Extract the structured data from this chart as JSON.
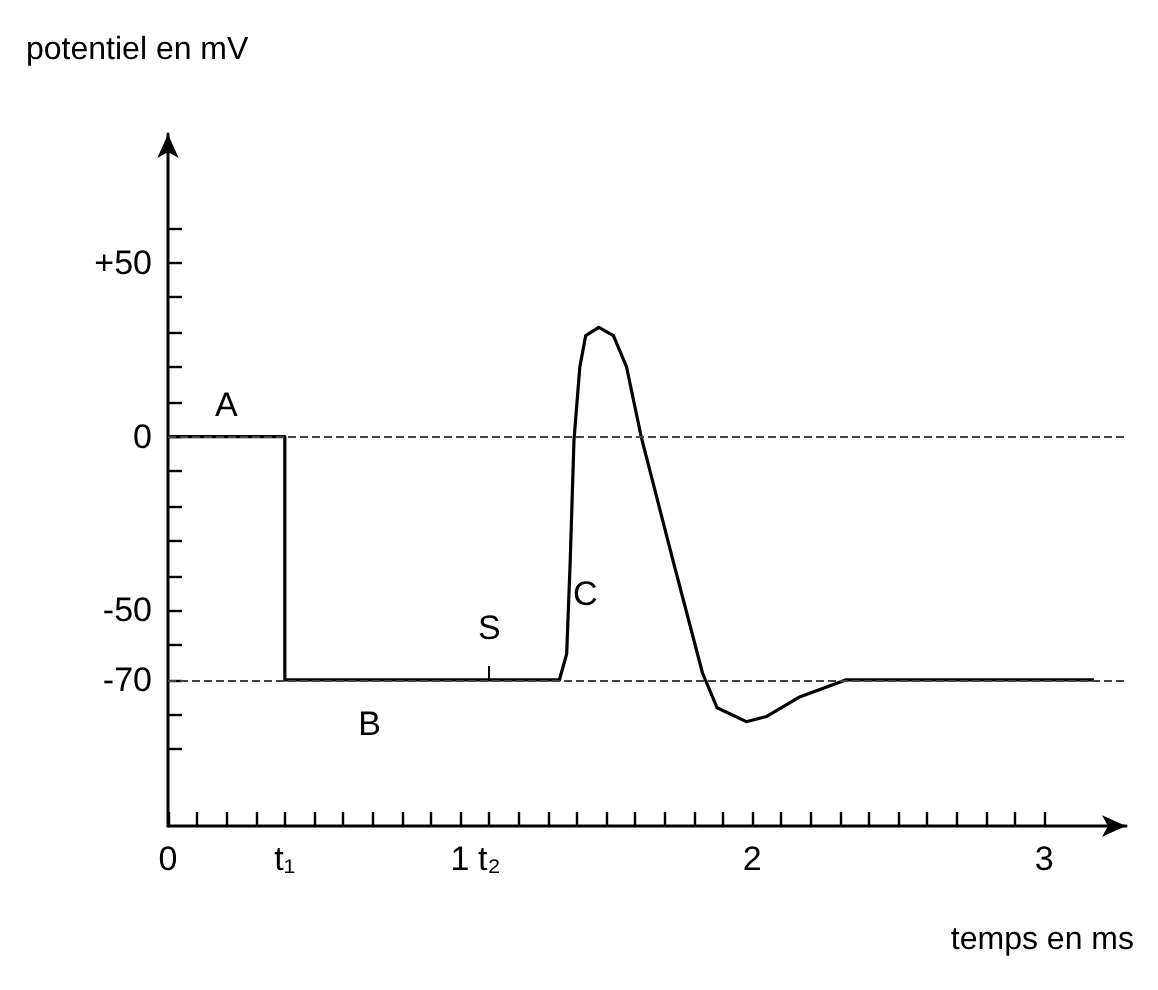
{
  "chart_data": {
    "type": "line",
    "xlabel": "temps en ms",
    "ylabel": "potentiel en mV",
    "x": [
      0,
      0.4,
      0.4,
      1.34,
      1.365,
      1.377,
      1.39,
      1.41,
      1.43,
      1.475,
      1.525,
      1.57,
      1.62,
      1.73,
      1.83,
      1.88,
      1.98,
      2.05,
      2.16,
      2.32,
      3.17
    ],
    "series": [
      {
        "color": "#000000",
        "values": [
          0,
          0,
          -70,
          -70,
          -62.5,
          -36,
          -1,
          20,
          29,
          31.4,
          29,
          20,
          0,
          -36,
          -68,
          -78,
          -82,
          -80.5,
          -75,
          -70,
          -70
        ]
      }
    ],
    "xlim": [
      0,
      3.28
    ],
    "xticks": [
      0,
      {
        "value": 0.1,
        "label": null
      },
      {
        "value": 0.2,
        "label": null
      },
      {
        "value": 0.3,
        "label": null
      },
      {
        "value": 0.4,
        "label": "t₁"
      },
      {
        "value": 0.5,
        "label": null
      },
      {
        "value": 0.6,
        "label": null
      },
      {
        "value": 0.7,
        "label": null
      },
      {
        "value": 0.8,
        "label": null
      },
      {
        "value": 0.9,
        "label": null
      },
      1,
      {
        "value": 1.1,
        "label": "t₂"
      },
      {
        "value": 1.2,
        "label": null
      },
      {
        "value": 1.3,
        "label": null
      },
      {
        "value": 1.4,
        "label": null
      },
      {
        "value": 1.5,
        "label": null
      },
      {
        "value": 1.6,
        "label": null
      },
      {
        "value": 1.7,
        "label": null
      },
      {
        "value": 1.8,
        "label": null
      },
      {
        "value": 1.9,
        "label": null
      },
      2,
      {
        "value": 2.1,
        "label": null
      },
      {
        "value": 2.2,
        "label": null
      },
      {
        "value": 2.3,
        "label": null
      },
      {
        "value": 2.4,
        "label": null
      },
      {
        "value": 2.5,
        "label": null
      },
      {
        "value": 2.6,
        "label": null
      },
      {
        "value": 2.7,
        "label": null
      },
      {
        "value": 2.8,
        "label": null
      },
      {
        "value": 2.9,
        "label": null
      },
      3
    ],
    "ylim": [
      -112,
      87
    ],
    "yticks": [
      {
        "value": -90,
        "label": null
      },
      {
        "value": -80,
        "label": null
      },
      -70,
      {
        "value": -60,
        "label": null
      },
      -50,
      {
        "value": -40,
        "label": null
      },
      {
        "value": -30,
        "label": null
      },
      {
        "value": -20,
        "label": null
      },
      {
        "value": -10,
        "label": null
      },
      0,
      {
        "value": 10,
        "label": null
      },
      {
        "value": 20,
        "label": null
      },
      {
        "value": 30,
        "label": null
      },
      {
        "value": 40,
        "label": null
      },
      {
        "value": 50,
        "label": "+50"
      },
      {
        "value": 60,
        "label": null
      }
    ],
    "ref_lines": [
      {
        "axis": "y",
        "value": 0,
        "color": "#444444",
        "line_style": "dashed"
      },
      {
        "axis": "y",
        "value": -70,
        "color": "#444444",
        "line_style": "dashed"
      }
    ],
    "annotations": [
      {
        "text": "A",
        "x": 0.2,
        "y": 0
      },
      {
        "text": "B",
        "x": 0.69,
        "y": -70
      },
      {
        "text": "C",
        "x": 1.73,
        "y": -36
      },
      {
        "text": "S",
        "x": 1.1,
        "y": -70
      }
    ],
    "marker": "none",
    "line_style": "solid",
    "grid": false
  }
}
